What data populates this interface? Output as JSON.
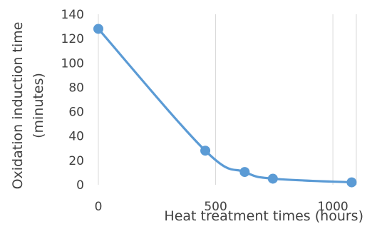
{
  "chart_data": {
    "type": "line",
    "smooth": true,
    "xlabel": "Heat treatment times (hours)",
    "ylabel_lines": [
      "Oxidation induction time",
      "(minutes)"
    ],
    "xlim": [
      0,
      1100
    ],
    "ylim": [
      0,
      140
    ],
    "xticks": [
      0,
      500,
      1000
    ],
    "yticks": [
      0,
      20,
      40,
      60,
      80,
      100,
      120,
      140
    ],
    "grid": "vertical",
    "legend": "none",
    "series": [
      {
        "color": "#5b9bd5",
        "x": [
          0,
          456,
          624,
          744,
          1080
        ],
        "y": [
          128,
          28,
          10.5,
          5,
          2
        ]
      }
    ]
  }
}
